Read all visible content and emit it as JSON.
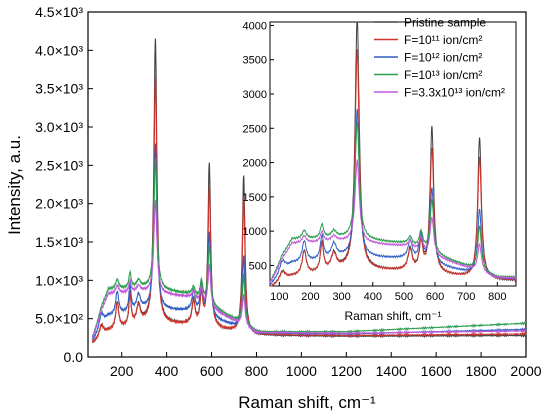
{
  "chart_data": [
    {
      "type": "line",
      "panel": "main",
      "xlabel": "Raman shift, cm⁻¹",
      "ylabel": "Intensity, a.u.",
      "xlim": [
        50,
        2000
      ],
      "ylim": [
        0,
        4500
      ],
      "x_ticks": [
        200,
        400,
        600,
        800,
        1000,
        1200,
        1400,
        1600,
        1800,
        2000
      ],
      "y_ticks": [
        {
          "value": 0,
          "label": "0.0"
        },
        {
          "value": 500,
          "label": "5.0×10²"
        },
        {
          "value": 1000,
          "label": "1.0×10³"
        },
        {
          "value": 1500,
          "label": "1.5×10³"
        },
        {
          "value": 2000,
          "label": "2.0×10³"
        },
        {
          "value": 2500,
          "label": "2.5×10³"
        },
        {
          "value": 3000,
          "label": "3.0×10³"
        },
        {
          "value": 3500,
          "label": "3.5×10³"
        },
        {
          "value": 4000,
          "label": "4.0×10³"
        },
        {
          "value": 4500,
          "label": "4.5×10³"
        }
      ],
      "series": [
        {
          "name": "Pristine sample",
          "color": "#404040",
          "baseline": [
            [
              70,
              170
            ],
            [
              140,
              330
            ],
            [
              300,
              440
            ],
            [
              500,
              420
            ],
            [
              800,
              280
            ],
            [
              1200,
              270
            ],
            [
              2000,
              280
            ]
          ],
          "peaks": [
            [
              110,
              150,
              12
            ],
            [
              180,
              350,
              8
            ],
            [
              237,
              420,
              6
            ],
            [
              275,
              240,
              10
            ],
            [
              350,
              3700,
              8
            ],
            [
              520,
              320,
              8
            ],
            [
              555,
              420,
              7
            ],
            [
              590,
              2130,
              7
            ],
            [
              743,
              2050,
              7
            ]
          ]
        },
        {
          "name": "F=10¹¹ ion/cm²",
          "color": "#d0342c",
          "baseline": [
            [
              70,
              170
            ],
            [
              140,
              330
            ],
            [
              300,
              440
            ],
            [
              500,
              420
            ],
            [
              800,
              290
            ],
            [
              1200,
              280
            ],
            [
              2000,
              300
            ]
          ],
          "peaks": [
            [
              110,
              140,
              12
            ],
            [
              180,
              340,
              8
            ],
            [
              237,
              410,
              6
            ],
            [
              275,
              230,
              10
            ],
            [
              350,
              3200,
              8
            ],
            [
              520,
              300,
              8
            ],
            [
              555,
              400,
              7
            ],
            [
              590,
              1810,
              7
            ],
            [
              743,
              1760,
              7
            ]
          ]
        },
        {
          "name": "F=10¹² ion/cm²",
          "color": "#2f5fc4",
          "baseline": [
            [
              70,
              200
            ],
            [
              140,
              520
            ],
            [
              300,
              620
            ],
            [
              500,
              600
            ],
            [
              800,
              310
            ],
            [
              1200,
              300
            ],
            [
              2000,
              360
            ]
          ],
          "peaks": [
            [
              110,
              180,
              12
            ],
            [
              180,
              300,
              8
            ],
            [
              237,
              340,
              6
            ],
            [
              275,
              200,
              10
            ],
            [
              350,
              2150,
              8
            ],
            [
              520,
              270,
              8
            ],
            [
              555,
              380,
              7
            ],
            [
              590,
              1100,
              7
            ],
            [
              743,
              950,
              7
            ]
          ]
        },
        {
          "name": "F=10¹³ ion/cm²",
          "color": "#2e9e4f",
          "baseline": [
            [
              70,
              250
            ],
            [
              140,
              880
            ],
            [
              300,
              900
            ],
            [
              500,
              820
            ],
            [
              800,
              330
            ],
            [
              1200,
              330
            ],
            [
              2000,
              440
            ]
          ],
          "peaks": [
            [
              110,
              50,
              12
            ],
            [
              180,
              120,
              8
            ],
            [
              237,
              200,
              6
            ],
            [
              275,
              100,
              10
            ],
            [
              350,
              1700,
              8
            ],
            [
              520,
              120,
              8
            ],
            [
              555,
              250,
              7
            ],
            [
              590,
              770,
              7
            ],
            [
              743,
              640,
              7
            ]
          ]
        },
        {
          "name": "F=3.3x10¹³ ion/cm²",
          "color": "#c05ad8",
          "baseline": [
            [
              70,
              240
            ],
            [
              140,
              820
            ],
            [
              300,
              850
            ],
            [
              500,
              780
            ],
            [
              800,
              320
            ],
            [
              1200,
              310
            ],
            [
              2000,
              340
            ]
          ],
          "peaks": [
            [
              110,
              40,
              12
            ],
            [
              180,
              100,
              8
            ],
            [
              237,
              150,
              6
            ],
            [
              275,
              80,
              10
            ],
            [
              350,
              1200,
              8
            ],
            [
              520,
              100,
              8
            ],
            [
              555,
              200,
              7
            ],
            [
              590,
              550,
              7
            ],
            [
              743,
              400,
              7
            ]
          ]
        }
      ]
    },
    {
      "type": "line",
      "panel": "inset",
      "xlabel": "Raman shift, cm⁻¹",
      "ylabel": "",
      "xlim": [
        70,
        860
      ],
      "ylim": [
        200,
        4050
      ],
      "x_ticks": [
        100,
        200,
        300,
        400,
        500,
        600,
        700,
        800
      ],
      "y_ticks": [
        500,
        1000,
        1500,
        2000,
        2500,
        3000,
        3500,
        4000
      ],
      "shared_series_from_main": true
    }
  ],
  "legend": {
    "placement": "top-right of inset",
    "entries": [
      {
        "label": "Pristine sample",
        "color": "#404040"
      },
      {
        "label": "F=10¹¹ ion/cm²",
        "color": "#d0342c"
      },
      {
        "label": "F=10¹² ion/cm²",
        "color": "#2f5fc4"
      },
      {
        "label": "F=10¹³ ion/cm²",
        "color": "#2e9e4f"
      },
      {
        "label": "F=3.3x10¹³ ion/cm²",
        "color": "#c05ad8"
      }
    ]
  }
}
